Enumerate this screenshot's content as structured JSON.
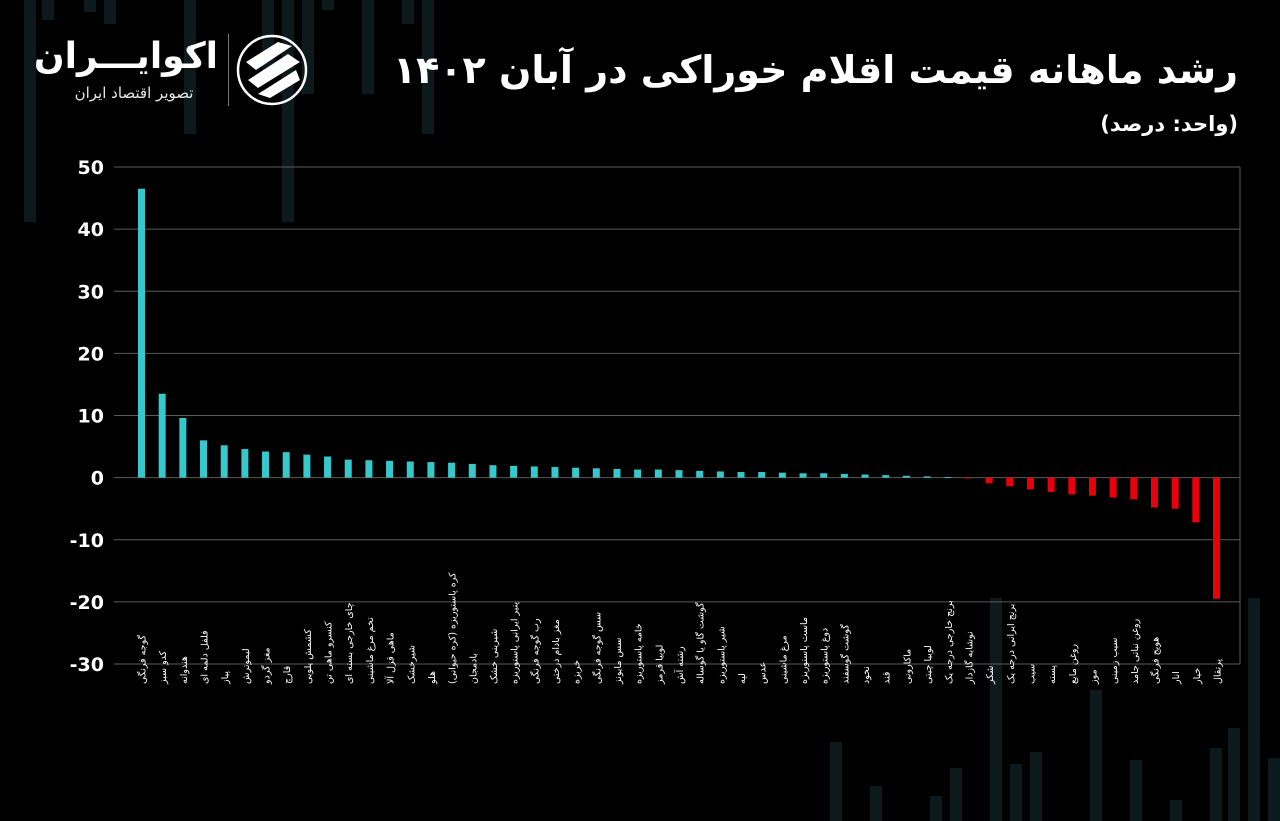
{
  "header": {
    "title": "رشد ماهانه قیمت اقلام خوراکی در آبان ۱۴۰۲",
    "unit": "(واحد: درصد)"
  },
  "logo": {
    "name": "اکوایـــران",
    "tagline": "تصویر اقتصاد ایران",
    "icon": "ecoiran-logo-icon"
  },
  "colors": {
    "positive": "#35c9cc",
    "negative": "#e8000b",
    "background": "#000000",
    "grid": "#5a5a5a"
  },
  "chart_data": {
    "type": "bar",
    "title": "رشد ماهانه قیمت اقلام خوراکی در آبان ۱۴۰۲",
    "ylabel": "",
    "xlabel": "",
    "ylim": [
      -30,
      50
    ],
    "yticks": [
      "50",
      "40",
      "30",
      "20",
      "10",
      "0",
      "-10",
      "-20",
      "-30"
    ],
    "grid": true,
    "categories": [
      "گوجه فرنگی",
      "کدو سبز",
      "هندوانه",
      "فلفل دلمه ای",
      "پیاز",
      "لیموترش",
      "مغز گردو",
      "قارچ",
      "کشمش پلویی",
      "کنسرو ماهی تن",
      "چای خارجی بسته ای",
      "تخم مرغ ماشینی",
      "ماهی قزل آلا",
      "شیرخشک",
      "هلو",
      "کره پاستوریزه (کره حیوانی)",
      "بادمجان",
      "شیرینی خشک",
      "پنیر ایرانی پاستوریزه",
      "رب گوجه فرنگی",
      "مغز بادام درختی",
      "خربزه",
      "سس گوجه فرنگی",
      "سس مایونز",
      "خامه پاستوریزه",
      "لوبیا قرمز",
      "رشته آش",
      "گوشت گاو یا گوساله",
      "شیر پاستوریزه",
      "لپه",
      "عدس",
      "مرغ ماشینی",
      "ماست پاستوریزه",
      "دوغ پاستوریزه",
      "گوشت گوسفند",
      "نخود",
      "قند",
      "ماکارونی",
      "لوبیا چیتی",
      "برنج خارجی درجه یک",
      "نوشابه گازدار",
      "شکر",
      "برنج ایرانی درجه یک",
      "سیب",
      "پسته",
      "روغن مایع",
      "موز",
      "سیب زمینی",
      "روغن نباتی جامد",
      "هویج فرنگی",
      "انار",
      "خیار",
      "پرتقال"
    ],
    "values": [
      46.5,
      13.5,
      9.6,
      6.0,
      5.2,
      4.6,
      4.2,
      4.1,
      3.7,
      3.4,
      2.9,
      2.8,
      2.7,
      2.6,
      2.5,
      2.4,
      2.2,
      2.0,
      1.9,
      1.8,
      1.7,
      1.6,
      1.5,
      1.4,
      1.3,
      1.3,
      1.2,
      1.1,
      1.0,
      0.9,
      0.9,
      0.8,
      0.7,
      0.7,
      0.6,
      0.5,
      0.4,
      0.3,
      0.2,
      0.1,
      -0.1,
      -0.9,
      -1.4,
      -1.9,
      -2.3,
      -2.7,
      -2.9,
      -3.2,
      -3.5,
      -4.8,
      -5.0,
      -7.2,
      -19.5
    ]
  }
}
